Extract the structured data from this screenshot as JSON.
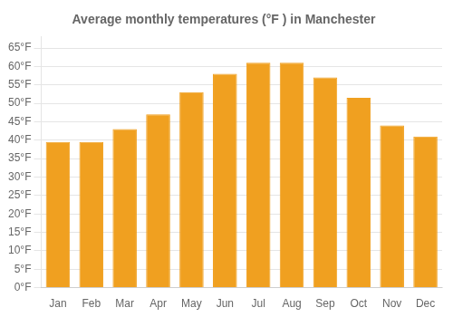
{
  "chart_data": {
    "type": "bar",
    "title": "Average monthly temperatures (°F ) in Manchester",
    "categories": [
      "Jan",
      "Feb",
      "Mar",
      "Apr",
      "May",
      "Jun",
      "Jul",
      "Aug",
      "Sep",
      "Oct",
      "Nov",
      "Dec"
    ],
    "values": [
      39.5,
      39.5,
      43,
      47,
      53,
      58,
      61,
      61,
      57,
      51.5,
      44,
      41
    ],
    "color": "#F0A020",
    "ylim": [
      0,
      68
    ],
    "yticks": [
      {
        "value": 0,
        "label": "0°F"
      },
      {
        "value": 5,
        "label": "5°F"
      },
      {
        "value": 10,
        "label": "10°F"
      },
      {
        "value": 15,
        "label": "15°F"
      },
      {
        "value": 20,
        "label": "20°F"
      },
      {
        "value": 25,
        "label": "25°F"
      },
      {
        "value": 30,
        "label": "30°F"
      },
      {
        "value": 35,
        "label": "35°F"
      },
      {
        "value": 40,
        "label": "40°F"
      },
      {
        "value": 45,
        "label": "45°F"
      },
      {
        "value": 50,
        "label": "50°F"
      },
      {
        "value": 55,
        "label": "55°F"
      },
      {
        "value": 60,
        "label": "60°F"
      },
      {
        "value": 65,
        "label": "65°F"
      }
    ],
    "grid": true
  }
}
